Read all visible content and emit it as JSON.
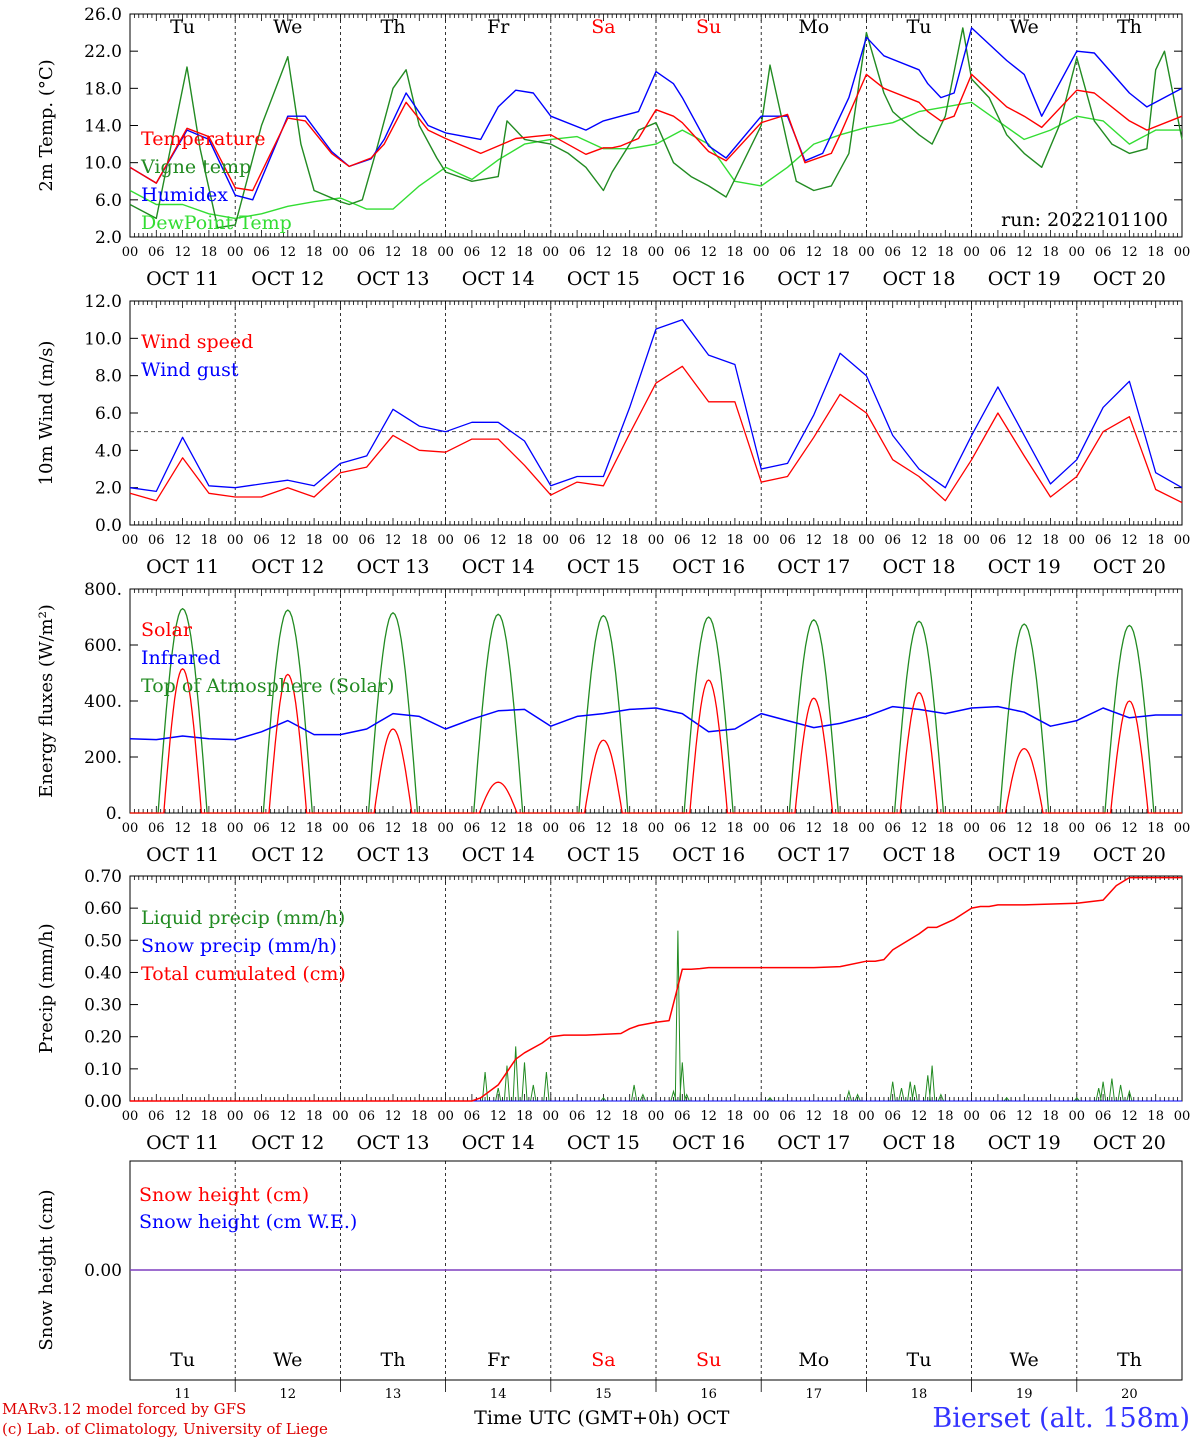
{
  "meta": {
    "run_label": "run: 2022101100",
    "footer_model": "MARv3.12 model forced by GFS",
    "footer_lab": "(c) Lab. of Climatology, University of Liege",
    "footer_xlabel": "Time UTC (GMT+0h)",
    "footer_month": "OCT",
    "station": "Bierset (alt. 158m)"
  },
  "colors": {
    "red": "#ff0000",
    "green": "#228b22",
    "blue": "#0000ff",
    "lightgreen": "#33dd33",
    "purple": "#7f3fbf",
    "weekend": "#ff0000",
    "station": "#3333ff",
    "footer_left": "#dd0000"
  },
  "days": {
    "weekday": [
      "Tu",
      "We",
      "Th",
      "Fr",
      "Sa",
      "Su",
      "Mo",
      "Tu",
      "We",
      "Th"
    ],
    "weekend": [
      false,
      false,
      false,
      false,
      true,
      true,
      false,
      false,
      false,
      false
    ],
    "date_label": [
      "OCT 11",
      "OCT 12",
      "OCT 13",
      "OCT 14",
      "OCT 15",
      "OCT 16",
      "OCT 17",
      "OCT 18",
      "OCT 19",
      "OCT 20"
    ],
    "day_num": [
      "11",
      "12",
      "13",
      "14",
      "15",
      "16",
      "17",
      "18",
      "19",
      "20"
    ],
    "hour_ticks": [
      "00",
      "06",
      "12",
      "18"
    ],
    "final_hour": "00"
  },
  "chart_data": [
    {
      "id": "temp",
      "type": "line",
      "ylabel": "2m Temp. (°C)",
      "ylim": [
        2,
        26
      ],
      "yticks": [
        "2.0",
        "6.0",
        "10.0",
        "14.0",
        "18.0",
        "22.0",
        "26.0"
      ],
      "x_unit": "hours since Oct 11 00 UTC",
      "legend": [
        "Temperature",
        "Vigne temp",
        "Humidex",
        "DewPoint Temp"
      ],
      "series": [
        {
          "name": "Temperature",
          "color": "red",
          "x": [
            0,
            6,
            13,
            18,
            24,
            28,
            36,
            40,
            46,
            50,
            55,
            58,
            63,
            68,
            72,
            80,
            88,
            92,
            96,
            104,
            108,
            110,
            112,
            116,
            120,
            124,
            126,
            132,
            136,
            144,
            150,
            154,
            160,
            162,
            168,
            172,
            180,
            182,
            185,
            188,
            192,
            200,
            204,
            208,
            216,
            220,
            228,
            232,
            240
          ],
          "y": [
            9.5,
            7.8,
            13.7,
            12.8,
            7.3,
            7.0,
            14.8,
            14.5,
            11.0,
            9.6,
            10.5,
            12.0,
            16.5,
            13.5,
            12.6,
            11.0,
            12.6,
            12.8,
            13.0,
            10.9,
            11.6,
            11.6,
            11.8,
            12.6,
            15.7,
            15.0,
            14.3,
            11.2,
            10.2,
            14.3,
            15.2,
            10.0,
            11.0,
            13.0,
            19.5,
            18.0,
            16.5,
            15.5,
            14.5,
            15.0,
            19.5,
            16.0,
            15.0,
            13.8,
            17.8,
            17.5,
            14.5,
            13.5,
            15.0
          ]
        },
        {
          "name": "Vigne temp",
          "color": "green",
          "x": [
            0,
            6,
            13,
            16,
            20,
            24,
            30,
            36,
            39,
            42,
            48,
            50,
            53,
            56,
            60,
            63,
            66,
            70,
            72,
            78,
            84,
            86,
            90,
            96,
            100,
            104,
            108,
            110,
            116,
            120,
            124,
            128,
            132,
            136,
            144,
            146,
            150,
            152,
            156,
            160,
            164,
            168,
            172,
            174,
            180,
            183,
            186,
            190,
            192,
            196,
            200,
            204,
            208,
            212,
            216,
            220,
            224,
            228,
            232,
            234,
            236,
            240
          ],
          "y": [
            5.5,
            4.0,
            20.3,
            11.5,
            3.0,
            3.3,
            14.0,
            21.4,
            12.0,
            7.0,
            5.8,
            5.5,
            6.0,
            11.0,
            18.0,
            20.0,
            14.0,
            10.5,
            9.0,
            8.0,
            8.5,
            14.5,
            12.5,
            12.0,
            11.0,
            9.5,
            7.0,
            9.0,
            13.5,
            14.3,
            10.0,
            8.5,
            7.5,
            6.3,
            14.0,
            20.5,
            12.0,
            8.0,
            7.0,
            7.5,
            11.0,
            24.0,
            17.5,
            15.5,
            13.0,
            12.0,
            15.0,
            24.5,
            19.0,
            17.0,
            13.0,
            11.0,
            9.5,
            14.0,
            21.3,
            14.5,
            12.0,
            11.0,
            11.5,
            20.0,
            22.0,
            12.5
          ]
        },
        {
          "name": "Humidex",
          "color": "blue",
          "x": [
            0,
            6,
            13,
            18,
            24,
            28,
            36,
            40,
            46,
            50,
            55,
            58,
            63,
            68,
            72,
            80,
            84,
            88,
            92,
            96,
            104,
            108,
            112,
            116,
            120,
            124,
            126,
            132,
            136,
            144,
            150,
            154,
            158,
            164,
            168,
            172,
            180,
            182,
            185,
            188,
            192,
            200,
            204,
            208,
            216,
            220,
            228,
            232,
            240
          ],
          "y": [
            9.5,
            7.8,
            13.5,
            12.5,
            6.5,
            6.0,
            15.0,
            15.0,
            11.2,
            9.6,
            10.4,
            12.5,
            17.5,
            14.0,
            13.2,
            12.5,
            16.0,
            17.8,
            17.5,
            15.0,
            13.5,
            14.5,
            15.0,
            15.5,
            19.8,
            18.5,
            17.0,
            11.8,
            10.5,
            15.0,
            15.0,
            10.2,
            11.0,
            17.0,
            23.5,
            21.5,
            20.0,
            18.5,
            17.0,
            17.5,
            24.5,
            21.0,
            19.5,
            15.0,
            22.0,
            21.8,
            17.5,
            16.0,
            18.0
          ]
        },
        {
          "name": "DewPoint Temp",
          "color": "lightgreen",
          "x": [
            0,
            6,
            12,
            18,
            24,
            30,
            36,
            42,
            48,
            54,
            60,
            66,
            72,
            78,
            84,
            90,
            96,
            102,
            108,
            114,
            120,
            126,
            132,
            138,
            144,
            150,
            156,
            162,
            168,
            174,
            180,
            186,
            192,
            198,
            204,
            210,
            216,
            222,
            228,
            234,
            240
          ],
          "y": [
            7.0,
            5.5,
            5.5,
            4.5,
            4.0,
            4.5,
            5.3,
            5.8,
            6.2,
            5.0,
            5.0,
            7.5,
            9.5,
            8.2,
            10.3,
            12.0,
            12.5,
            12.8,
            11.5,
            11.5,
            12.0,
            13.5,
            12.0,
            8.0,
            7.5,
            9.5,
            12.0,
            13.0,
            13.8,
            14.3,
            15.5,
            16.0,
            16.5,
            14.5,
            12.5,
            13.5,
            15.0,
            14.5,
            12.0,
            13.5,
            13.5
          ]
        }
      ]
    },
    {
      "id": "wind",
      "type": "line",
      "ylabel": "10m Wind (m/s)",
      "ylim": [
        0,
        12
      ],
      "yticks": [
        "0.0",
        "2.0",
        "4.0",
        "6.0",
        "8.0",
        "10.0",
        "12.0"
      ],
      "reference_line": 5.0,
      "legend": [
        "Wind speed",
        "Wind gust"
      ],
      "series": [
        {
          "name": "Wind speed",
          "color": "red",
          "x": [
            0,
            6,
            12,
            18,
            24,
            30,
            36,
            42,
            48,
            54,
            60,
            66,
            72,
            78,
            84,
            90,
            96,
            102,
            108,
            114,
            120,
            126,
            132,
            138,
            144,
            150,
            156,
            162,
            168,
            174,
            180,
            186,
            192,
            198,
            204,
            210,
            216,
            222,
            228,
            234,
            240
          ],
          "y": [
            1.7,
            1.3,
            3.6,
            1.7,
            1.5,
            1.5,
            2.0,
            1.5,
            2.8,
            3.1,
            4.8,
            4.0,
            3.9,
            4.6,
            4.6,
            3.2,
            1.6,
            2.3,
            2.1,
            4.9,
            7.6,
            8.5,
            6.6,
            6.6,
            2.3,
            2.6,
            4.7,
            7.0,
            6.0,
            3.5,
            2.6,
            1.3,
            3.5,
            6.0,
            3.7,
            1.5,
            2.6,
            5.0,
            5.8,
            1.9,
            1.2
          ]
        },
        {
          "name": "Wind gust",
          "color": "blue",
          "x": [
            0,
            6,
            12,
            18,
            24,
            30,
            36,
            42,
            48,
            54,
            60,
            66,
            72,
            78,
            84,
            90,
            96,
            102,
            108,
            114,
            120,
            126,
            132,
            138,
            144,
            150,
            156,
            162,
            168,
            174,
            180,
            186,
            192,
            198,
            204,
            210,
            216,
            222,
            228,
            234,
            240
          ],
          "y": [
            2.0,
            1.8,
            4.7,
            2.1,
            2.0,
            2.2,
            2.4,
            2.1,
            3.3,
            3.7,
            6.2,
            5.3,
            5.0,
            5.5,
            5.5,
            4.5,
            2.1,
            2.6,
            2.6,
            6.3,
            10.5,
            11.0,
            9.1,
            8.6,
            3.0,
            3.3,
            5.9,
            9.2,
            8.0,
            4.8,
            3.0,
            2.0,
            4.8,
            7.4,
            4.8,
            2.2,
            3.5,
            6.3,
            7.7,
            2.8,
            2.0
          ]
        }
      ]
    },
    {
      "id": "flux",
      "type": "line",
      "ylabel": "Energy fluxes (W/m²)",
      "ylim": [
        0,
        800
      ],
      "yticks": [
        "0.",
        "200.",
        "400.",
        "600.",
        "800."
      ],
      "legend": [
        "Solar",
        "Infrared",
        "Top of Atmosphere (Solar)"
      ],
      "series": [
        {
          "name": "Top of Atmosphere (Solar)",
          "color": "green",
          "daily_peak": [
            730,
            725,
            715,
            710,
            705,
            700,
            690,
            685,
            675,
            670
          ]
        },
        {
          "name": "Solar",
          "color": "red",
          "daily_peak": [
            515,
            495,
            300,
            110,
            260,
            475,
            410,
            430,
            230,
            400
          ]
        },
        {
          "name": "Infrared",
          "color": "blue",
          "x": [
            0,
            6,
            12,
            18,
            24,
            30,
            36,
            42,
            48,
            54,
            60,
            66,
            72,
            78,
            84,
            90,
            96,
            102,
            108,
            114,
            120,
            126,
            132,
            138,
            144,
            150,
            156,
            162,
            168,
            174,
            180,
            186,
            192,
            198,
            204,
            210,
            216,
            222,
            228,
            234,
            240
          ],
          "y": [
            265,
            262,
            275,
            265,
            262,
            290,
            330,
            280,
            280,
            300,
            355,
            345,
            300,
            335,
            365,
            370,
            310,
            345,
            355,
            370,
            375,
            355,
            290,
            300,
            355,
            330,
            305,
            320,
            345,
            380,
            370,
            355,
            375,
            380,
            360,
            310,
            330,
            375,
            340,
            350,
            350
          ]
        }
      ]
    },
    {
      "id": "precip",
      "type": "line",
      "ylabel": "Precip (mm/h)",
      "ylim": [
        0,
        0.7
      ],
      "yticks": [
        "0.00",
        "0.10",
        "0.20",
        "0.30",
        "0.40",
        "0.50",
        "0.60",
        "0.70"
      ],
      "legend": [
        "Liquid precip (mm/h)",
        "Snow precip (mm/h)",
        "Total cumulated (cm)"
      ],
      "series": [
        {
          "name": "Total cumulated (cm)",
          "color": "red",
          "x": [
            0,
            78,
            80,
            84,
            88,
            90,
            94,
            96,
            99,
            104,
            112,
            114,
            116,
            118,
            120,
            123,
            126,
            128,
            130,
            132,
            134,
            136,
            144,
            156,
            162,
            168,
            170,
            172,
            174,
            180,
            182,
            184,
            188,
            192,
            194,
            196,
            198,
            204,
            216,
            222,
            225,
            228,
            240
          ],
          "y": [
            0,
            0,
            0.01,
            0.05,
            0.13,
            0.15,
            0.18,
            0.2,
            0.205,
            0.205,
            0.21,
            0.225,
            0.235,
            0.24,
            0.245,
            0.25,
            0.41,
            0.41,
            0.412,
            0.415,
            0.415,
            0.415,
            0.415,
            0.415,
            0.418,
            0.435,
            0.435,
            0.44,
            0.47,
            0.52,
            0.54,
            0.54,
            0.565,
            0.6,
            0.605,
            0.605,
            0.61,
            0.61,
            0.615,
            0.625,
            0.67,
            0.695,
            0.695
          ]
        },
        {
          "name": "Liquid precip (mm/h)",
          "color": "green",
          "spikes": [
            [
              81,
              0.09
            ],
            [
              84,
              0.04
            ],
            [
              86,
              0.11
            ],
            [
              88,
              0.17
            ],
            [
              90,
              0.12
            ],
            [
              92,
              0.05
            ],
            [
              95,
              0.09
            ],
            [
              108,
              0.01
            ],
            [
              115,
              0.05
            ],
            [
              117,
              0.02
            ],
            [
              124,
              0.03
            ],
            [
              125,
              0.53
            ],
            [
              126,
              0.12
            ],
            [
              127,
              0.02
            ],
            [
              146,
              0.01
            ],
            [
              164,
              0.03
            ],
            [
              166,
              0.02
            ],
            [
              174,
              0.06
            ],
            [
              176,
              0.04
            ],
            [
              178,
              0.06
            ],
            [
              179,
              0.05
            ],
            [
              182,
              0.08
            ],
            [
              183,
              0.11
            ],
            [
              185,
              0.02
            ],
            [
              200,
              0.01
            ],
            [
              216,
              0.01
            ],
            [
              221,
              0.04
            ],
            [
              222,
              0.06
            ],
            [
              224,
              0.07
            ],
            [
              226,
              0.05
            ],
            [
              228,
              0.03
            ]
          ]
        },
        {
          "name": "Snow precip (mm/h)",
          "color": "blue",
          "constant": 0
        }
      ]
    },
    {
      "id": "snow",
      "type": "line",
      "ylabel": "Snow height (cm)",
      "ytick_label": "0.00",
      "legend": [
        "Snow height (cm)",
        "Snow height (cm W.E.)"
      ],
      "series": [
        {
          "name": "Snow height (cm)",
          "color": "red",
          "constant": 0
        },
        {
          "name": "Snow height (cm W.E.)",
          "color": "blue",
          "constant": 0
        }
      ]
    }
  ]
}
